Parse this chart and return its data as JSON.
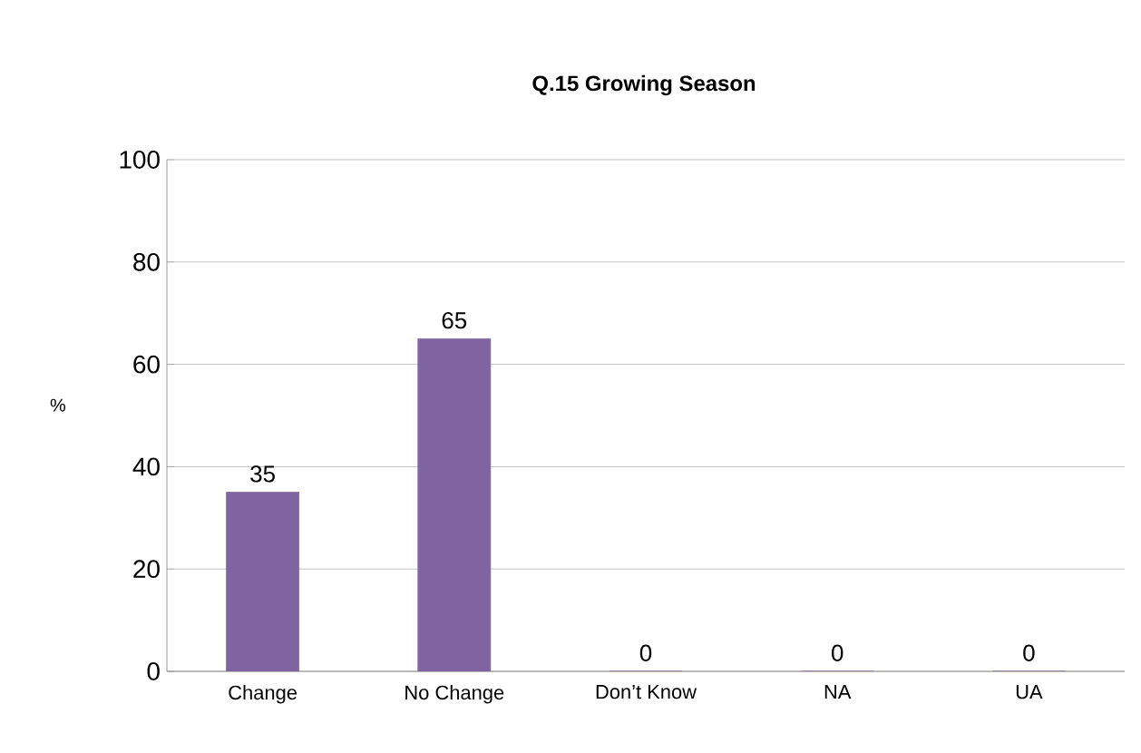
{
  "chart_data": {
    "type": "bar",
    "title": "Q.15 Growing Season",
    "ylabel": "%",
    "categories": [
      "Change",
      "No Change",
      "Don’t Know",
      "NA",
      "UA"
    ],
    "values": [
      35,
      65,
      0,
      0,
      0
    ],
    "color": "#8064a2",
    "ylim": [
      0,
      100
    ],
    "yticks": [
      0,
      20,
      40,
      60,
      80,
      100
    ],
    "grid": "y",
    "data_labels": true
  }
}
